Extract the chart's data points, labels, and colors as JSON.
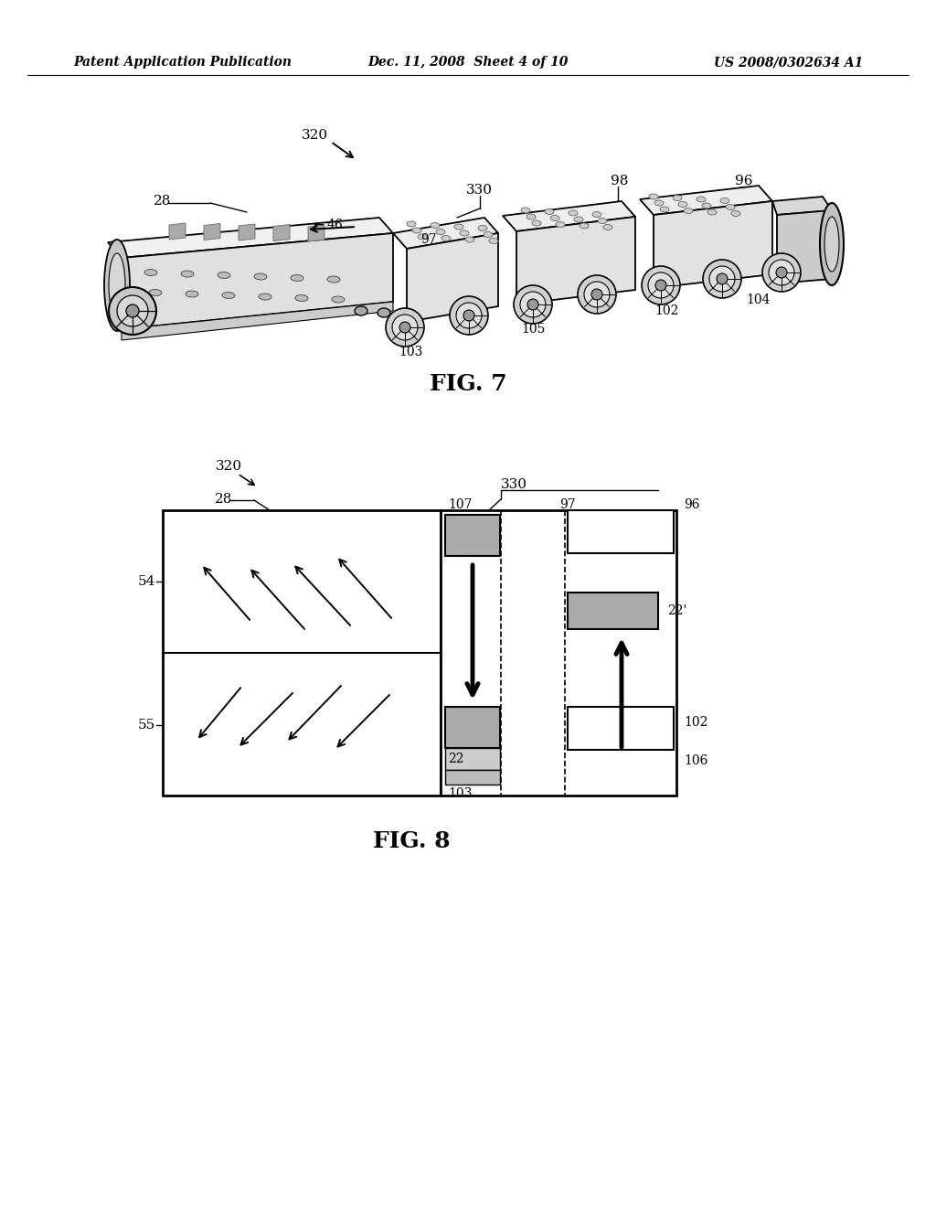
{
  "background_color": "#ffffff",
  "header_left": "Patent Application Publication",
  "header_center": "Dec. 11, 2008  Sheet 4 of 10",
  "header_right": "US 2008/0302634 A1",
  "fig7_label": "FIG. 7",
  "fig8_label": "FIG. 8",
  "line_color": "#000000"
}
